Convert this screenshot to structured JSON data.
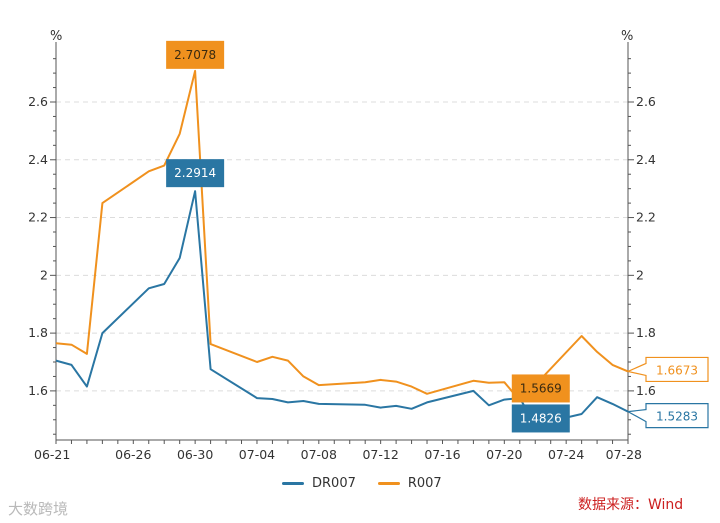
{
  "chart_data": {
    "type": "line",
    "y_unit_left": "%",
    "y_unit_right": "%",
    "ylim": [
      1.43,
      2.78
    ],
    "y_ticks": [
      1.6,
      1.8,
      2,
      2.2,
      2.4,
      2.6
    ],
    "y_tick_labels": [
      "1.6",
      "1.8",
      "2",
      "2.2",
      "2.4",
      "2.6"
    ],
    "x_ticks": [
      "06-21",
      "06-26",
      "06-30",
      "07-04",
      "07-08",
      "07-12",
      "07-16",
      "07-20",
      "07-24",
      "07-28"
    ],
    "grid": true,
    "legend_position": "bottom",
    "x": [
      "06-21",
      "06-22",
      "06-23",
      "06-24",
      "06-27",
      "06-28",
      "06-29",
      "06-30",
      "07-01",
      "07-04",
      "07-05",
      "07-06",
      "07-07",
      "07-08",
      "07-11",
      "07-12",
      "07-13",
      "07-14",
      "07-15",
      "07-18",
      "07-19",
      "07-20",
      "07-21",
      "07-22",
      "07-25",
      "07-26",
      "07-27",
      "07-28"
    ],
    "series": [
      {
        "name": "DR007",
        "color": "#2a76a3",
        "values": [
          1.705,
          1.69,
          1.615,
          1.8,
          1.955,
          1.97,
          2.06,
          2.2914,
          1.675,
          1.575,
          1.572,
          1.56,
          1.565,
          1.555,
          1.552,
          1.542,
          1.548,
          1.538,
          1.56,
          1.6,
          1.55,
          1.57,
          1.575,
          1.4826,
          1.52,
          1.578,
          1.555,
          1.5283
        ]
      },
      {
        "name": "R007",
        "color": "#f0911e",
        "values": [
          1.765,
          1.76,
          1.728,
          2.25,
          2.36,
          2.38,
          2.49,
          2.7078,
          1.762,
          1.7,
          1.718,
          1.705,
          1.65,
          1.62,
          1.63,
          1.638,
          1.632,
          1.615,
          1.59,
          1.635,
          1.628,
          1.63,
          1.5669,
          1.62,
          1.79,
          1.735,
          1.69,
          1.6673
        ]
      }
    ],
    "annotations": [
      {
        "series": "R007",
        "x": "06-30",
        "label": "2.7078"
      },
      {
        "series": "DR007",
        "x": "06-30",
        "label": "2.2914"
      },
      {
        "series": "R007",
        "x": "07-21",
        "label": "1.5669"
      },
      {
        "series": "DR007",
        "x": "07-22",
        "label": "1.4826"
      },
      {
        "series": "R007",
        "x": "07-28",
        "label": "1.6673"
      },
      {
        "series": "DR007",
        "x": "07-28",
        "label": "1.5283"
      }
    ]
  },
  "source_text": "数据来源：Wind",
  "watermark_text": "大数跨境"
}
